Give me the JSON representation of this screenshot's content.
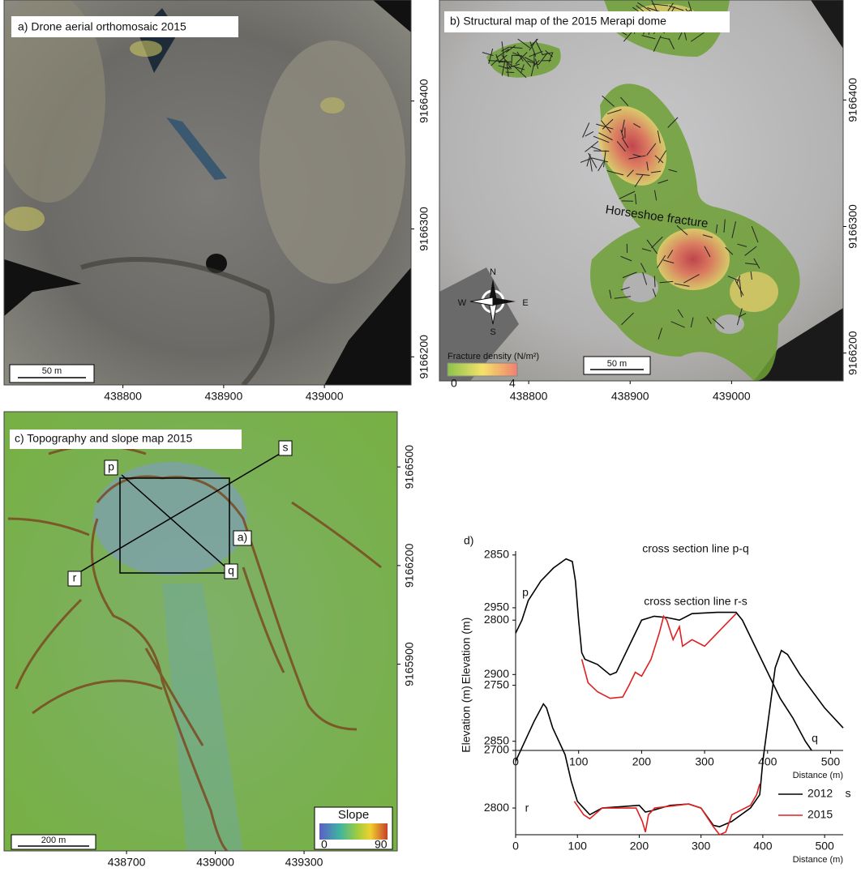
{
  "maps": [
    {
      "title": "a) Drone aerial orthomosaic 2015",
      "scale_bar": "50 m",
      "xlim": [
        438682,
        439086
      ],
      "ylim": [
        9166178,
        9166479
      ],
      "xticks": [
        438800,
        438900,
        439000
      ],
      "yticks": [
        9166400,
        9166300,
        9166200
      ]
    },
    {
      "title": "b) Structural map of the 2015 Merapi dome",
      "scale_bar": "50 m",
      "annotation": "Horseshoe fracture",
      "compass": [
        "N",
        "S",
        "E",
        "W"
      ],
      "legend": {
        "title": "Fracture density (N/m²)",
        "min": 0,
        "max": 4
      },
      "xlim": [
        438712,
        439110
      ],
      "ylim": [
        9166178,
        9166479
      ],
      "xticks": [
        438800,
        438900,
        439000
      ],
      "yticks": [
        9166400,
        9166300,
        9166200
      ]
    },
    {
      "title": "c) Topography and slope map 2015",
      "scale_bar": "200 m",
      "labels": [
        "p",
        "q",
        "r",
        "s",
        "a)"
      ],
      "legend": {
        "title": "Slope",
        "min": 0,
        "max": 90
      },
      "xlim": [
        438286,
        439615
      ],
      "ylim": [
        9165332,
        9166668
      ],
      "xticks": [
        438700,
        439000,
        439300
      ],
      "yticks": [
        9166500,
        9166200,
        9165900
      ]
    }
  ],
  "chart_data": [
    {
      "type": "line",
      "panel": "d)",
      "title": "cross section line p-q",
      "ylabel": "Elevation (m)",
      "xlabel": "Distance (m)",
      "xlim": [
        0,
        520
      ],
      "ylim": [
        2700,
        2853
      ],
      "xticks": [
        0,
        100,
        200,
        300,
        400,
        500
      ],
      "yticks": [
        2700,
        2750,
        2800,
        2850
      ],
      "annotations": [
        "p",
        "q"
      ],
      "series": [
        {
          "color": "#000000",
          "x": [
            0,
            10,
            20,
            40,
            60,
            80,
            90,
            95,
            100,
            105,
            110,
            130,
            150,
            160,
            180,
            200,
            220,
            240,
            260,
            280,
            320,
            350,
            360,
            380,
            400,
            420,
            440,
            460,
            470
          ],
          "values": [
            2790,
            2800,
            2815,
            2830,
            2840,
            2847,
            2845,
            2830,
            2800,
            2775,
            2770,
            2766,
            2758,
            2760,
            2780,
            2800,
            2803,
            2802,
            2800,
            2805,
            2806,
            2806,
            2800,
            2780,
            2760,
            2740,
            2725,
            2707,
            2700
          ]
        },
        {
          "color": "#e02020",
          "x": [
            105,
            115,
            130,
            150,
            170,
            180,
            190,
            200,
            215,
            228,
            235,
            240,
            250,
            260,
            265,
            280,
            300,
            320,
            340,
            350
          ],
          "values": [
            2770,
            2752,
            2745,
            2740,
            2741,
            2750,
            2760,
            2757,
            2770,
            2790,
            2803,
            2800,
            2785,
            2795,
            2780,
            2785,
            2780,
            2790,
            2800,
            2805
          ]
        }
      ]
    },
    {
      "type": "line",
      "title": "cross section line r-s",
      "ylabel": "Elevation (m)",
      "xlabel": "Distance (m)",
      "xlim": [
        0,
        530
      ],
      "ylim": [
        2780,
        2953
      ],
      "xticks": [
        0,
        100,
        200,
        300,
        400,
        500
      ],
      "yticks": [
        2800,
        2850,
        2900,
        2950
      ],
      "annotations": [
        "r",
        "s"
      ],
      "legend": "lower right",
      "series": [
        {
          "name": "2012",
          "color": "#000000",
          "x": [
            0,
            10,
            20,
            30,
            45,
            50,
            60,
            80,
            90,
            100,
            120,
            140,
            200,
            210,
            220,
            250,
            280,
            300,
            320,
            330,
            350,
            380,
            395,
            400,
            410,
            420,
            430,
            440,
            460,
            500,
            530
          ],
          "values": [
            2835,
            2845,
            2855,
            2865,
            2878,
            2875,
            2860,
            2840,
            2820,
            2805,
            2795,
            2800,
            2802,
            2797,
            2798,
            2802,
            2803,
            2800,
            2787,
            2786,
            2790,
            2800,
            2810,
            2835,
            2870,
            2905,
            2918,
            2915,
            2900,
            2875,
            2860
          ]
        },
        {
          "name": "2015",
          "color": "#e02020",
          "x": [
            95,
            110,
            120,
            140,
            195,
            205,
            210,
            215,
            225,
            280,
            300,
            320,
            330,
            340,
            350,
            380,
            390,
            395
          ],
          "values": [
            2805,
            2795,
            2792,
            2800,
            2800,
            2790,
            2782,
            2795,
            2800,
            2803,
            2800,
            2786,
            2780,
            2782,
            2795,
            2802,
            2810,
            2818
          ]
        }
      ]
    }
  ]
}
